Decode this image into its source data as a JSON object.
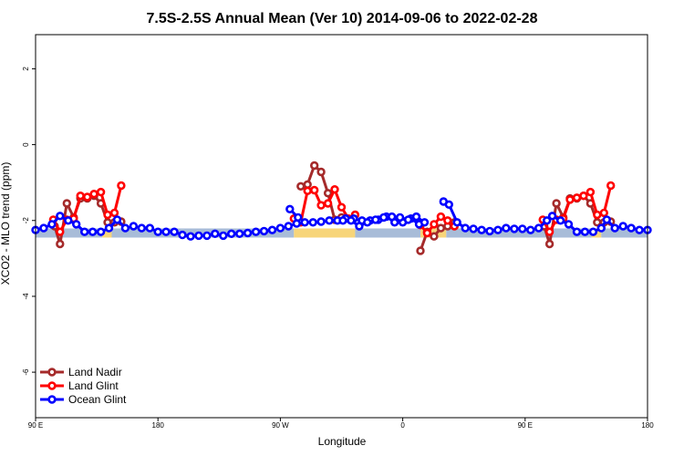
{
  "chart_data": {
    "type": "line",
    "title": "7.5S-2.5S Annual Mean (Ver 10)   2014-09-06 to 2022-02-28",
    "xlabel": "Longitude",
    "ylabel": "XCO2 - MLO trend (ppm)",
    "xlim": [
      0,
      450
    ],
    "ylim": [
      -7.2,
      2.9
    ],
    "x_ticks": [
      {
        "x": 0,
        "label": "90 E"
      },
      {
        "x": 90,
        "label": "180"
      },
      {
        "x": 180,
        "label": "90 W"
      },
      {
        "x": 270,
        "label": "0"
      },
      {
        "x": 360,
        "label": "90 E"
      },
      {
        "x": 450,
        "label": "180"
      }
    ],
    "y_ticks": [
      {
        "y": 2,
        "label": "2"
      },
      {
        "y": 0,
        "label": "0"
      },
      {
        "y": -2,
        "label": "-2"
      },
      {
        "y": -4,
        "label": "-4"
      },
      {
        "y": -6,
        "label": "-6"
      }
    ],
    "band": {
      "y_center": -2.33,
      "segments": [
        {
          "start": 0,
          "end": 49,
          "color": "#a8bcd8"
        },
        {
          "start": 49,
          "end": 56,
          "color": "#f7d57a"
        },
        {
          "start": 56,
          "end": 190,
          "color": "#a8bcd8"
        },
        {
          "start": 190,
          "end": 235,
          "color": "#f7d57a"
        },
        {
          "start": 235,
          "end": 283,
          "color": "#a8bcd8"
        },
        {
          "start": 283,
          "end": 302,
          "color": "#f7d57a"
        },
        {
          "start": 302,
          "end": 409,
          "color": "#a8bcd8"
        },
        {
          "start": 409,
          "end": 416,
          "color": "#f7d57a"
        },
        {
          "start": 416,
          "end": 450,
          "color": "#a8bcd8"
        }
      ]
    },
    "series": [
      {
        "name": "Land Nadir",
        "color": "#a52a2a",
        "segments": [
          [
            [
              14,
              -2.15
            ],
            [
              18,
              -2.62
            ],
            [
              23,
              -1.55
            ],
            [
              28,
              -1.92
            ],
            [
              33,
              -1.42
            ],
            [
              38,
              -1.42
            ],
            [
              43,
              -1.35
            ],
            [
              48,
              -1.55
            ],
            [
              53,
              -2.05
            ],
            [
              58,
              -2.05
            ],
            [
              63,
              -2.03
            ]
          ],
          [
            [
              195,
              -1.1
            ],
            [
              200,
              -1.05
            ],
            [
              205,
              -0.55
            ],
            [
              210,
              -0.72
            ],
            [
              215,
              -1.28
            ],
            [
              220,
              -1.98
            ],
            [
              225,
              -1.92
            ]
          ],
          [
            [
              283,
              -2.8
            ],
            [
              288,
              -2.3
            ],
            [
              293,
              -2.42
            ],
            [
              298,
              -2.2
            ],
            [
              303,
              -2.15
            ],
            [
              308,
              -2.05
            ]
          ],
          [
            [
              374,
              -2.15
            ],
            [
              378,
              -2.62
            ],
            [
              383,
              -1.55
            ],
            [
              388,
              -1.92
            ],
            [
              393,
              -1.42
            ],
            [
              398,
              -1.42
            ],
            [
              403,
              -1.35
            ],
            [
              408,
              -1.55
            ],
            [
              413,
              -2.05
            ],
            [
              418,
              -2.05
            ],
            [
              423,
              -2.03
            ]
          ]
        ]
      },
      {
        "name": "Land Glint",
        "color": "#ff0000",
        "segments": [
          [
            [
              13,
              -1.98
            ],
            [
              18,
              -2.3
            ],
            [
              23,
              -1.98
            ],
            [
              28,
              -1.95
            ],
            [
              33,
              -1.35
            ],
            [
              38,
              -1.38
            ],
            [
              43,
              -1.3
            ],
            [
              48,
              -1.25
            ],
            [
              53,
              -1.85
            ],
            [
              58,
              -1.8
            ],
            [
              63,
              -1.08
            ]
          ],
          [
            [
              190,
              -1.95
            ],
            [
              195,
              -2.05
            ],
            [
              200,
              -1.22
            ],
            [
              205,
              -1.2
            ],
            [
              210,
              -1.6
            ],
            [
              215,
              -1.55
            ],
            [
              220,
              -1.18
            ],
            [
              225,
              -1.65
            ],
            [
              230,
              -1.95
            ],
            [
              235,
              -1.85
            ]
          ],
          [
            [
              283,
              -2.12
            ],
            [
              288,
              -2.33
            ],
            [
              293,
              -2.1
            ],
            [
              298,
              -1.9
            ],
            [
              303,
              -2.0
            ],
            [
              308,
              -2.15
            ]
          ],
          [
            [
              373,
              -1.98
            ],
            [
              378,
              -2.3
            ],
            [
              383,
              -1.98
            ],
            [
              388,
              -1.95
            ],
            [
              393,
              -1.45
            ],
            [
              398,
              -1.4
            ],
            [
              403,
              -1.35
            ],
            [
              408,
              -1.25
            ],
            [
              413,
              -1.85
            ],
            [
              418,
              -1.8
            ],
            [
              423,
              -1.08
            ]
          ]
        ]
      },
      {
        "name": "Ocean Glint",
        "color": "#0000ff",
        "segments": [
          [
            [
              0,
              -2.25
            ],
            [
              6,
              -2.2
            ],
            [
              12,
              -2.1
            ],
            [
              18,
              -1.88
            ],
            [
              24,
              -2.0
            ],
            [
              30,
              -2.1
            ],
            [
              36,
              -2.3
            ],
            [
              42,
              -2.3
            ],
            [
              48,
              -2.3
            ],
            [
              54,
              -2.2
            ],
            [
              60,
              -1.98
            ],
            [
              66,
              -2.2
            ],
            [
              72,
              -2.15
            ],
            [
              78,
              -2.2
            ],
            [
              84,
              -2.2
            ],
            [
              90,
              -2.3
            ],
            [
              96,
              -2.3
            ],
            [
              102,
              -2.3
            ],
            [
              108,
              -2.38
            ],
            [
              114,
              -2.42
            ],
            [
              120,
              -2.4
            ],
            [
              126,
              -2.4
            ],
            [
              132,
              -2.35
            ],
            [
              138,
              -2.4
            ],
            [
              144,
              -2.35
            ],
            [
              150,
              -2.35
            ],
            [
              156,
              -2.33
            ],
            [
              162,
              -2.3
            ],
            [
              168,
              -2.28
            ],
            [
              174,
              -2.25
            ],
            [
              180,
              -2.2
            ],
            [
              186,
              -2.15
            ],
            [
              192,
              -2.08
            ],
            [
              198,
              -2.05
            ],
            [
              204,
              -2.05
            ],
            [
              210,
              -2.03
            ],
            [
              216,
              -2.0
            ],
            [
              222,
              -2.0
            ],
            [
              228,
              -1.95
            ],
            [
              234,
              -1.95
            ],
            [
              240,
              -2.0
            ],
            [
              246,
              -2.0
            ],
            [
              252,
              -1.98
            ],
            [
              258,
              -1.9
            ],
            [
              264,
              -2.05
            ],
            [
              270,
              -2.05
            ],
            [
              276,
              -1.95
            ],
            [
              282,
              -2.1
            ]
          ],
          [
            [
              187,
              -1.7
            ],
            [
              193,
              -1.92
            ]
          ],
          [
            [
              226,
              -2.0
            ],
            [
              232,
              -2.0
            ],
            [
              238,
              -2.15
            ],
            [
              244,
              -2.05
            ],
            [
              250,
              -1.98
            ],
            [
              256,
              -1.92
            ],
            [
              262,
              -1.9
            ],
            [
              268,
              -1.92
            ],
            [
              274,
              -1.98
            ],
            [
              280,
              -1.9
            ],
            [
              286,
              -2.05
            ]
          ],
          [
            [
              300,
              -1.5
            ],
            [
              304,
              -1.58
            ],
            [
              310,
              -2.05
            ],
            [
              316,
              -2.2
            ],
            [
              322,
              -2.22
            ],
            [
              328,
              -2.25
            ],
            [
              334,
              -2.28
            ],
            [
              340,
              -2.25
            ],
            [
              346,
              -2.2
            ],
            [
              352,
              -2.22
            ],
            [
              358,
              -2.22
            ],
            [
              364,
              -2.25
            ],
            [
              370,
              -2.2
            ],
            [
              376,
              -2.0
            ],
            [
              380,
              -1.88
            ],
            [
              386,
              -2.0
            ],
            [
              392,
              -2.1
            ],
            [
              398,
              -2.3
            ],
            [
              404,
              -2.3
            ],
            [
              410,
              -2.3
            ],
            [
              416,
              -2.2
            ],
            [
              420,
              -1.98
            ],
            [
              426,
              -2.2
            ],
            [
              432,
              -2.15
            ],
            [
              438,
              -2.2
            ],
            [
              444,
              -2.25
            ],
            [
              450,
              -2.25
            ]
          ]
        ]
      }
    ],
    "legend": {
      "position": "bottom-left",
      "entries": [
        "Land Nadir",
        "Land Glint",
        "Ocean Glint"
      ]
    }
  }
}
